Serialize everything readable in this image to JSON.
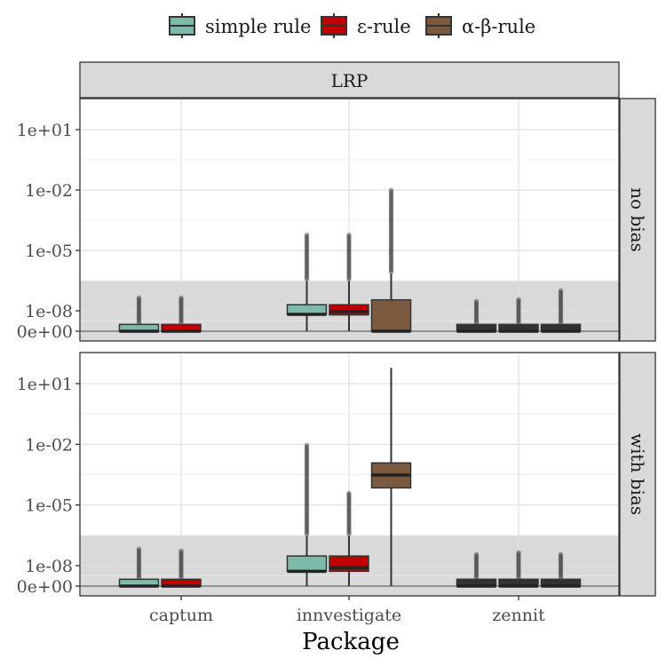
{
  "chart_data": {
    "type": "boxplot",
    "title": "",
    "xlabel": "Package",
    "ylabel": "",
    "y_scale": "pseudo-log (zero at baseline)",
    "categories": [
      "captum",
      "innvestigate",
      "zennit"
    ],
    "y_tick_labels": [
      "0e+00",
      "1e-08",
      "1e-05",
      "1e-02",
      "1e+01"
    ],
    "y_tick_values": [
      0,
      1e-08,
      1e-05,
      0.01,
      10
    ],
    "column_strip": "LRP",
    "grid": true,
    "legend": {
      "position": "top",
      "items": [
        {
          "label": "simple rule",
          "color": "#7fb9a9"
        },
        {
          "label": "ε-rule",
          "color": "#c00000"
        },
        {
          "label": "α-β-rule",
          "color": "#7b5a40"
        }
      ]
    },
    "series_colors": {
      "simple rule": "#7fb9a9",
      "ε-rule": "#c00000",
      "α-β-rule": "#7b5a40"
    },
    "shaded_region": {
      "from": 0,
      "to": 3e-07,
      "color": "#d9d9d9"
    },
    "panels": [
      {
        "strip": "no bias",
        "boxes": [
          {
            "package": "captum",
            "rule": "simple rule",
            "q1": 0,
            "median": 0,
            "q3": 1e-10,
            "whisker_low": 0,
            "whisker_high": 1e-10,
            "outlier_max": 5e-08
          },
          {
            "package": "captum",
            "rule": "ε-rule",
            "q1": 0,
            "median": 0,
            "q3": 1e-10,
            "whisker_low": 0,
            "whisker_high": 1e-10,
            "outlier_max": 5e-08
          },
          {
            "package": "innvestigate",
            "rule": "simple rule",
            "q1": 3e-09,
            "median": 3e-09,
            "q3": 2e-08,
            "whisker_low": 0,
            "whisker_high": 3e-07,
            "outlier_max": 6e-05
          },
          {
            "package": "innvestigate",
            "rule": "ε-rule",
            "q1": 2.5e-09,
            "median": 8e-09,
            "q3": 2e-08,
            "whisker_low": 0,
            "whisker_high": 3e-07,
            "outlier_max": 6e-05
          },
          {
            "package": "innvestigate",
            "rule": "α-β-rule",
            "q1": 0,
            "median": 0,
            "q3": 3.5e-08,
            "whisker_low": 0,
            "whisker_high": 7e-07,
            "outlier_max": 0.012
          }
        ]
      },
      {
        "strip": "with bias",
        "boxes": [
          {
            "package": "captum",
            "rule": "simple rule",
            "q1": 0,
            "median": 0,
            "q3": 1e-10,
            "whisker_low": 0,
            "whisker_high": 1e-10,
            "outlier_max": 7e-08
          },
          {
            "package": "captum",
            "rule": "ε-rule",
            "q1": 0,
            "median": 0,
            "q3": 1e-10,
            "whisker_low": 0,
            "whisker_high": 1e-10,
            "outlier_max": 6e-08
          },
          {
            "package": "innvestigate",
            "rule": "simple rule",
            "q1": 1.5e-09,
            "median": 1.5e-09,
            "q3": 3e-08,
            "whisker_low": 0,
            "whisker_high": 3e-07,
            "outlier_max": 0.01
          },
          {
            "package": "innvestigate",
            "rule": "ε-rule",
            "q1": 1.5e-09,
            "median": 5e-09,
            "q3": 3e-08,
            "whisker_low": 0,
            "whisker_high": 3e-07,
            "outlier_max": 4e-05
          },
          {
            "package": "innvestigate",
            "rule": "α-β-rule",
            "q1": 7e-05,
            "median": 0.0003,
            "q3": 0.0012,
            "whisker_low": 0,
            "whisker_high": 60,
            "outlier_max": 60
          }
        ]
      }
    ]
  }
}
